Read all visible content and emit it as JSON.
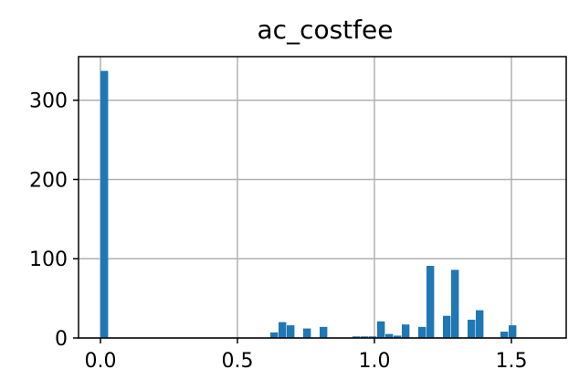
{
  "chart_data": {
    "type": "bar",
    "title": "ac_costfee",
    "xlabel": "",
    "ylabel": "",
    "xlim": [
      -0.08,
      1.7
    ],
    "ylim": [
      0,
      355
    ],
    "grid": true,
    "bar_color": "#1f77b4",
    "bin_width": 0.03,
    "x_ticks": [
      0.0,
      0.5,
      1.0,
      1.5
    ],
    "x_tick_labels": [
      "0.0",
      "0.5",
      "1.0",
      "1.5"
    ],
    "y_ticks": [
      0,
      100,
      200,
      300
    ],
    "y_tick_labels": [
      "0",
      "100",
      "200",
      "300"
    ],
    "bins": [
      {
        "x": 0.0,
        "count": 337
      },
      {
        "x": 0.62,
        "count": 7
      },
      {
        "x": 0.65,
        "count": 20
      },
      {
        "x": 0.68,
        "count": 16
      },
      {
        "x": 0.74,
        "count": 12
      },
      {
        "x": 0.8,
        "count": 14
      },
      {
        "x": 0.92,
        "count": 2
      },
      {
        "x": 0.95,
        "count": 2
      },
      {
        "x": 0.98,
        "count": 2
      },
      {
        "x": 1.01,
        "count": 21
      },
      {
        "x": 1.04,
        "count": 5
      },
      {
        "x": 1.07,
        "count": 3
      },
      {
        "x": 1.1,
        "count": 17
      },
      {
        "x": 1.16,
        "count": 14
      },
      {
        "x": 1.19,
        "count": 91
      },
      {
        "x": 1.25,
        "count": 28
      },
      {
        "x": 1.28,
        "count": 86
      },
      {
        "x": 1.34,
        "count": 23
      },
      {
        "x": 1.37,
        "count": 35
      },
      {
        "x": 1.46,
        "count": 8
      },
      {
        "x": 1.49,
        "count": 16
      }
    ]
  }
}
